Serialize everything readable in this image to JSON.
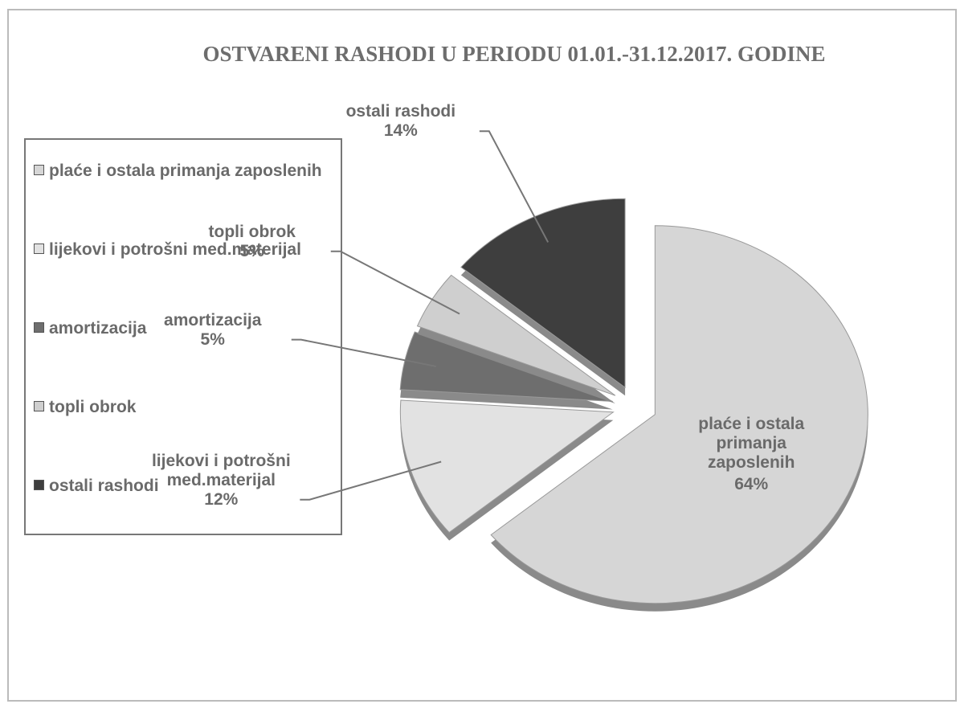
{
  "chart_data": {
    "type": "pie",
    "title": "OSTVARENI RASHODI U PERIODU 01.01.-31.12.2017. GODINE",
    "categories": [
      "plaće i ostala primanja zaposlenih",
      "lijekovi i potrošni med.materijal",
      "amortizacija",
      "topli obrok",
      "ostali rashodi"
    ],
    "values": [
      64,
      12,
      5,
      5,
      14
    ],
    "value_labels": [
      "64%",
      "12%",
      "5%",
      "5%",
      "14%"
    ],
    "colors": [
      "#d6d6d6",
      "#e2e2e2",
      "#6e6e6e",
      "#cfcfcf",
      "#3e3e3e"
    ],
    "legend": "left"
  }
}
